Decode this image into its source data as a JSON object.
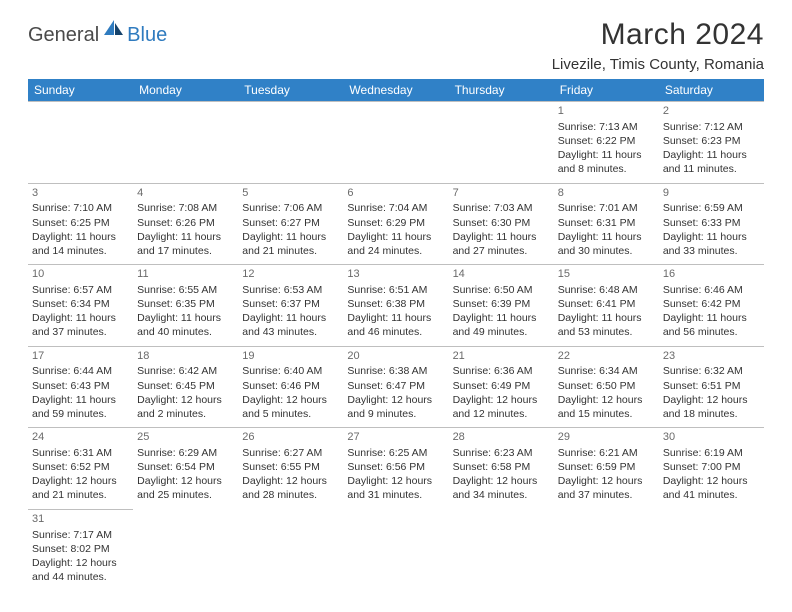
{
  "brand": {
    "part1": "General",
    "part2": "Blue"
  },
  "title": "March 2024",
  "location": "Livezile, Timis County, Romania",
  "colors": {
    "header_bg": "#3081c7",
    "header_text": "#ffffff",
    "border": "#bfbfbf",
    "text": "#333333",
    "logo_gray": "#4a4a4a",
    "logo_blue": "#2f7bbf"
  },
  "day_headers": [
    "Sunday",
    "Monday",
    "Tuesday",
    "Wednesday",
    "Thursday",
    "Friday",
    "Saturday"
  ],
  "weeks": [
    [
      null,
      null,
      null,
      null,
      null,
      {
        "n": "1",
        "sr": "Sunrise: 7:13 AM",
        "ss": "Sunset: 6:22 PM",
        "d1": "Daylight: 11 hours",
        "d2": "and 8 minutes."
      },
      {
        "n": "2",
        "sr": "Sunrise: 7:12 AM",
        "ss": "Sunset: 6:23 PM",
        "d1": "Daylight: 11 hours",
        "d2": "and 11 minutes."
      }
    ],
    [
      {
        "n": "3",
        "sr": "Sunrise: 7:10 AM",
        "ss": "Sunset: 6:25 PM",
        "d1": "Daylight: 11 hours",
        "d2": "and 14 minutes."
      },
      {
        "n": "4",
        "sr": "Sunrise: 7:08 AM",
        "ss": "Sunset: 6:26 PM",
        "d1": "Daylight: 11 hours",
        "d2": "and 17 minutes."
      },
      {
        "n": "5",
        "sr": "Sunrise: 7:06 AM",
        "ss": "Sunset: 6:27 PM",
        "d1": "Daylight: 11 hours",
        "d2": "and 21 minutes."
      },
      {
        "n": "6",
        "sr": "Sunrise: 7:04 AM",
        "ss": "Sunset: 6:29 PM",
        "d1": "Daylight: 11 hours",
        "d2": "and 24 minutes."
      },
      {
        "n": "7",
        "sr": "Sunrise: 7:03 AM",
        "ss": "Sunset: 6:30 PM",
        "d1": "Daylight: 11 hours",
        "d2": "and 27 minutes."
      },
      {
        "n": "8",
        "sr": "Sunrise: 7:01 AM",
        "ss": "Sunset: 6:31 PM",
        "d1": "Daylight: 11 hours",
        "d2": "and 30 minutes."
      },
      {
        "n": "9",
        "sr": "Sunrise: 6:59 AM",
        "ss": "Sunset: 6:33 PM",
        "d1": "Daylight: 11 hours",
        "d2": "and 33 minutes."
      }
    ],
    [
      {
        "n": "10",
        "sr": "Sunrise: 6:57 AM",
        "ss": "Sunset: 6:34 PM",
        "d1": "Daylight: 11 hours",
        "d2": "and 37 minutes."
      },
      {
        "n": "11",
        "sr": "Sunrise: 6:55 AM",
        "ss": "Sunset: 6:35 PM",
        "d1": "Daylight: 11 hours",
        "d2": "and 40 minutes."
      },
      {
        "n": "12",
        "sr": "Sunrise: 6:53 AM",
        "ss": "Sunset: 6:37 PM",
        "d1": "Daylight: 11 hours",
        "d2": "and 43 minutes."
      },
      {
        "n": "13",
        "sr": "Sunrise: 6:51 AM",
        "ss": "Sunset: 6:38 PM",
        "d1": "Daylight: 11 hours",
        "d2": "and 46 minutes."
      },
      {
        "n": "14",
        "sr": "Sunrise: 6:50 AM",
        "ss": "Sunset: 6:39 PM",
        "d1": "Daylight: 11 hours",
        "d2": "and 49 minutes."
      },
      {
        "n": "15",
        "sr": "Sunrise: 6:48 AM",
        "ss": "Sunset: 6:41 PM",
        "d1": "Daylight: 11 hours",
        "d2": "and 53 minutes."
      },
      {
        "n": "16",
        "sr": "Sunrise: 6:46 AM",
        "ss": "Sunset: 6:42 PM",
        "d1": "Daylight: 11 hours",
        "d2": "and 56 minutes."
      }
    ],
    [
      {
        "n": "17",
        "sr": "Sunrise: 6:44 AM",
        "ss": "Sunset: 6:43 PM",
        "d1": "Daylight: 11 hours",
        "d2": "and 59 minutes."
      },
      {
        "n": "18",
        "sr": "Sunrise: 6:42 AM",
        "ss": "Sunset: 6:45 PM",
        "d1": "Daylight: 12 hours",
        "d2": "and 2 minutes."
      },
      {
        "n": "19",
        "sr": "Sunrise: 6:40 AM",
        "ss": "Sunset: 6:46 PM",
        "d1": "Daylight: 12 hours",
        "d2": "and 5 minutes."
      },
      {
        "n": "20",
        "sr": "Sunrise: 6:38 AM",
        "ss": "Sunset: 6:47 PM",
        "d1": "Daylight: 12 hours",
        "d2": "and 9 minutes."
      },
      {
        "n": "21",
        "sr": "Sunrise: 6:36 AM",
        "ss": "Sunset: 6:49 PM",
        "d1": "Daylight: 12 hours",
        "d2": "and 12 minutes."
      },
      {
        "n": "22",
        "sr": "Sunrise: 6:34 AM",
        "ss": "Sunset: 6:50 PM",
        "d1": "Daylight: 12 hours",
        "d2": "and 15 minutes."
      },
      {
        "n": "23",
        "sr": "Sunrise: 6:32 AM",
        "ss": "Sunset: 6:51 PM",
        "d1": "Daylight: 12 hours",
        "d2": "and 18 minutes."
      }
    ],
    [
      {
        "n": "24",
        "sr": "Sunrise: 6:31 AM",
        "ss": "Sunset: 6:52 PM",
        "d1": "Daylight: 12 hours",
        "d2": "and 21 minutes."
      },
      {
        "n": "25",
        "sr": "Sunrise: 6:29 AM",
        "ss": "Sunset: 6:54 PM",
        "d1": "Daylight: 12 hours",
        "d2": "and 25 minutes."
      },
      {
        "n": "26",
        "sr": "Sunrise: 6:27 AM",
        "ss": "Sunset: 6:55 PM",
        "d1": "Daylight: 12 hours",
        "d2": "and 28 minutes."
      },
      {
        "n": "27",
        "sr": "Sunrise: 6:25 AM",
        "ss": "Sunset: 6:56 PM",
        "d1": "Daylight: 12 hours",
        "d2": "and 31 minutes."
      },
      {
        "n": "28",
        "sr": "Sunrise: 6:23 AM",
        "ss": "Sunset: 6:58 PM",
        "d1": "Daylight: 12 hours",
        "d2": "and 34 minutes."
      },
      {
        "n": "29",
        "sr": "Sunrise: 6:21 AM",
        "ss": "Sunset: 6:59 PM",
        "d1": "Daylight: 12 hours",
        "d2": "and 37 minutes."
      },
      {
        "n": "30",
        "sr": "Sunrise: 6:19 AM",
        "ss": "Sunset: 7:00 PM",
        "d1": "Daylight: 12 hours",
        "d2": "and 41 minutes."
      }
    ],
    [
      {
        "n": "31",
        "sr": "Sunrise: 7:17 AM",
        "ss": "Sunset: 8:02 PM",
        "d1": "Daylight: 12 hours",
        "d2": "and 44 minutes."
      },
      null,
      null,
      null,
      null,
      null,
      null
    ]
  ]
}
